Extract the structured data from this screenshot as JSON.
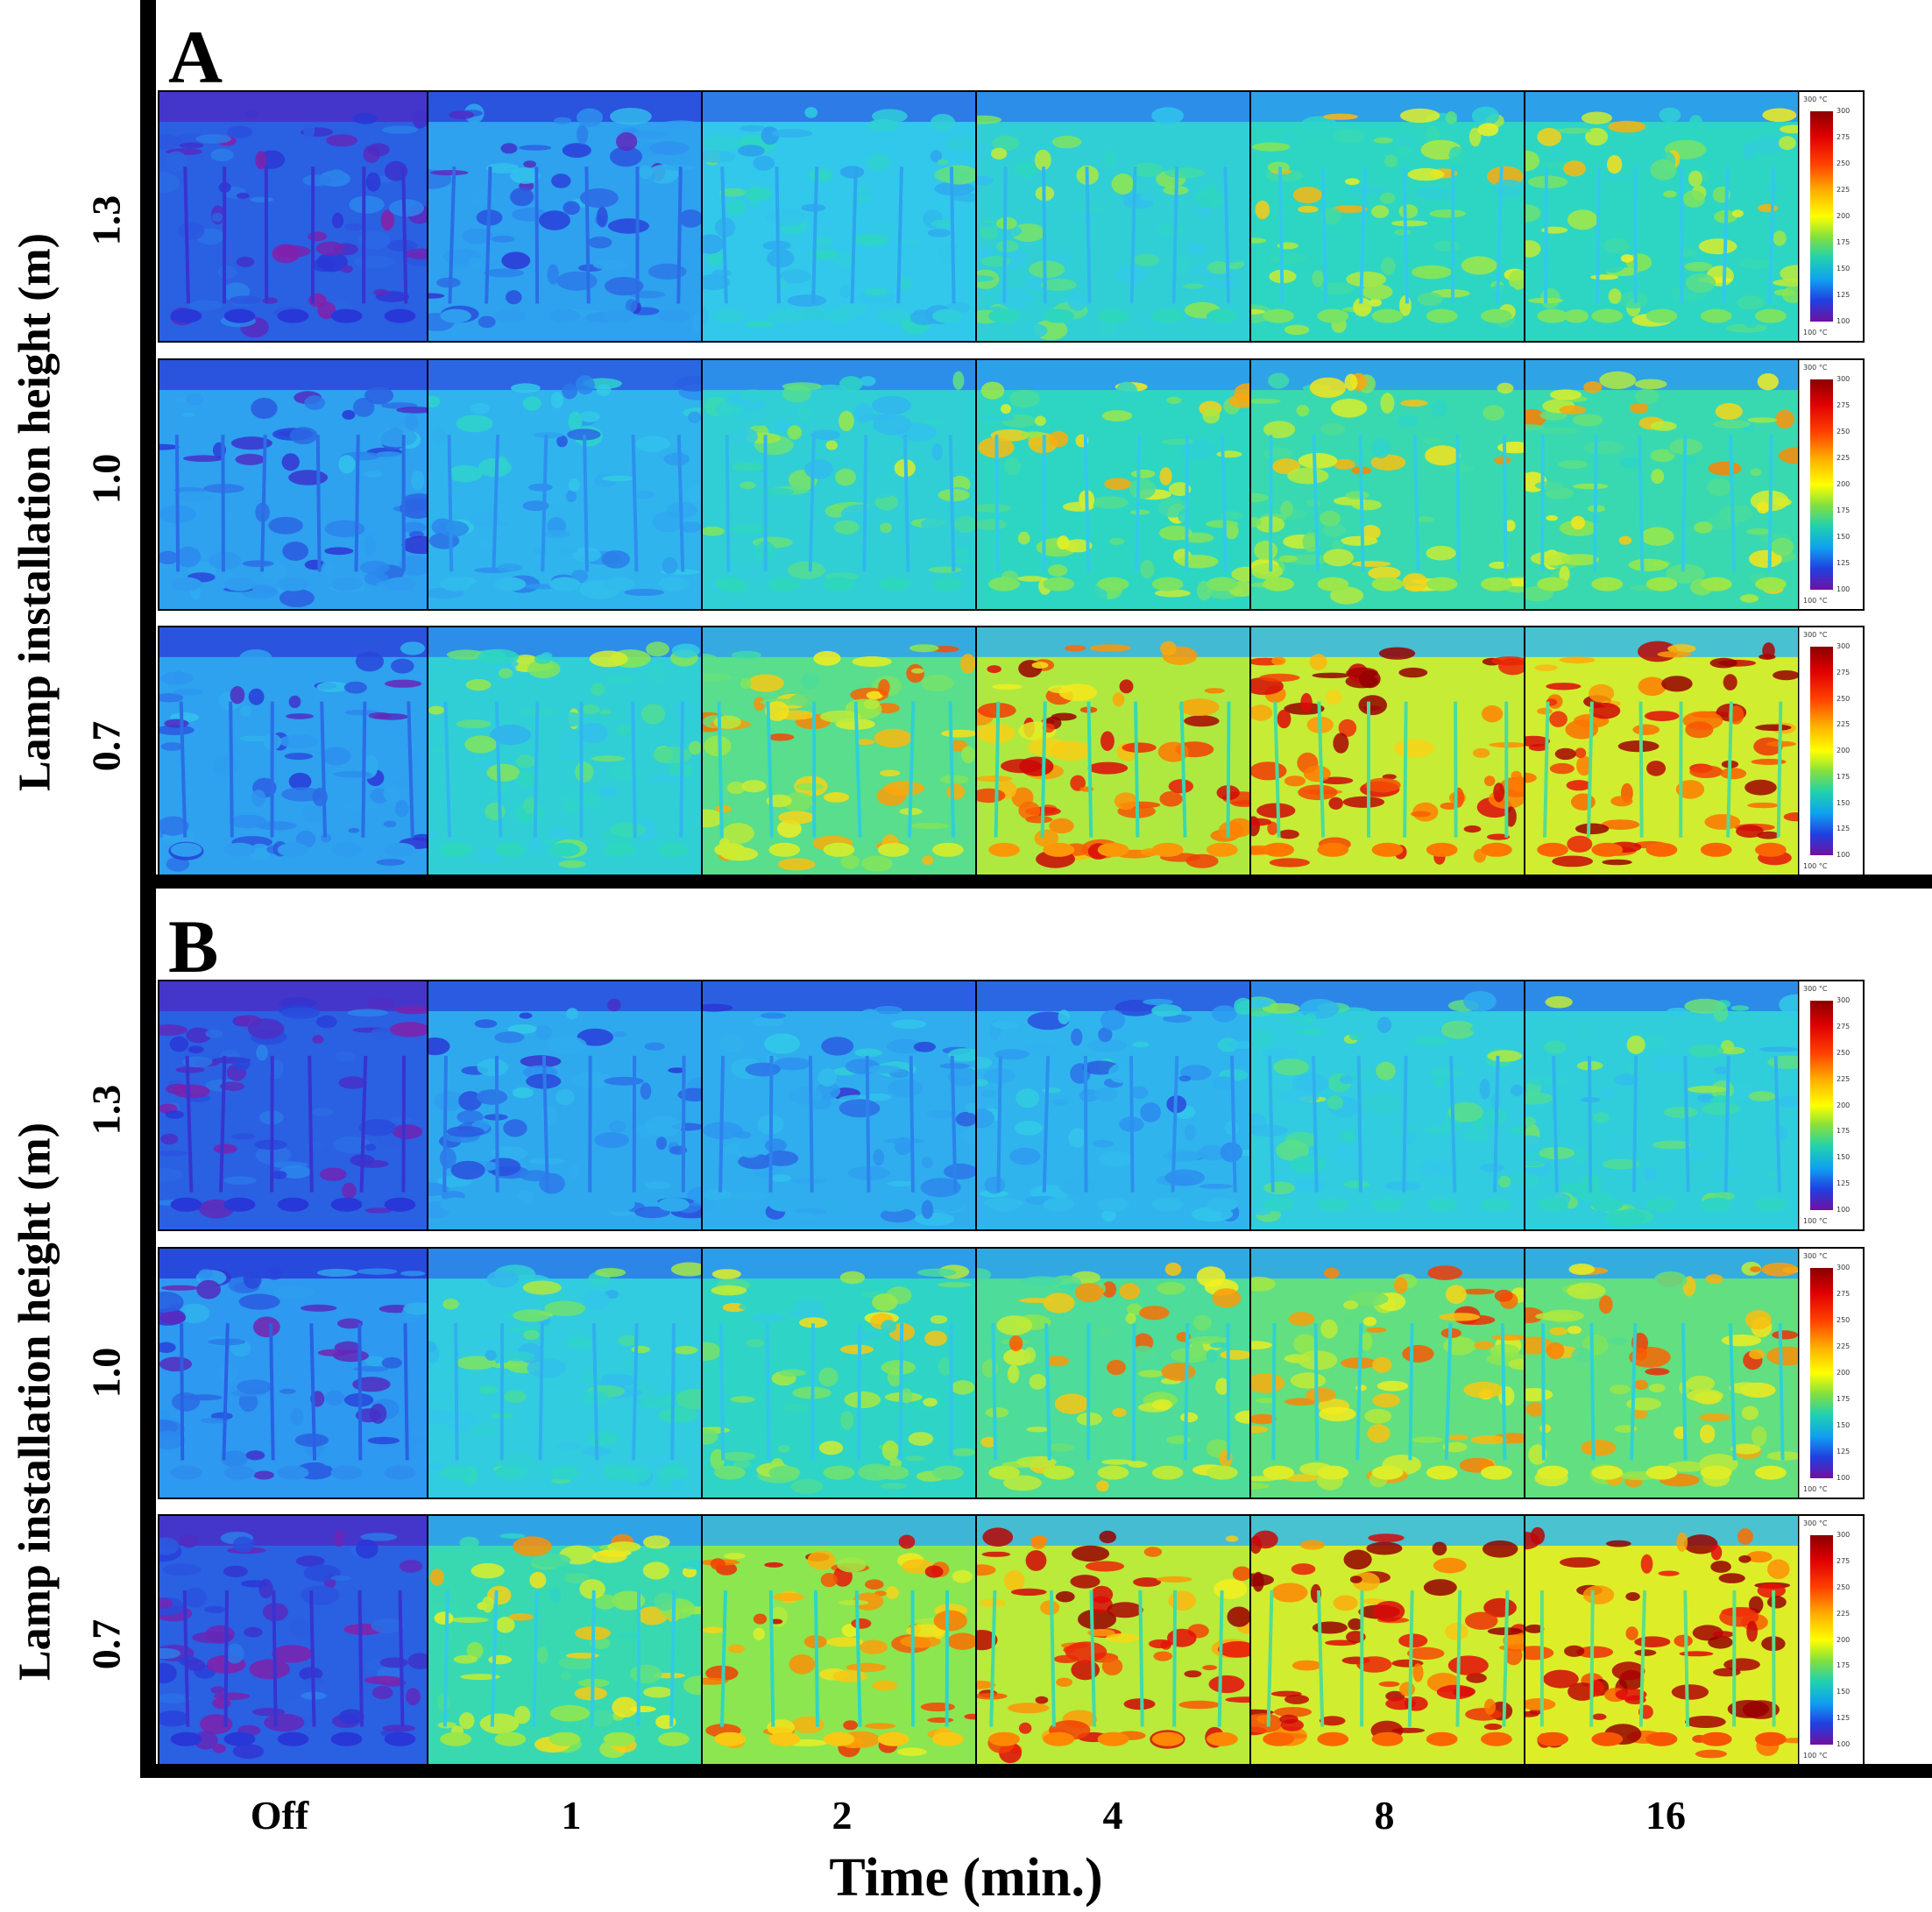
{
  "panels": [
    {
      "letter": "A",
      "rows": [
        "1.3",
        "1.0",
        "0.7"
      ]
    },
    {
      "letter": "B",
      "rows": [
        "1.3",
        "1.0",
        "0.7"
      ]
    }
  ],
  "ylabel": "Lamp installation height (m)",
  "columns": [
    "Off",
    "1",
    "2",
    "4",
    "8",
    "16"
  ],
  "xtitle": "Time (min.)",
  "scale": {
    "unit": "300 °C",
    "ticks": [
      "300",
      "275",
      "250",
      "225",
      "200",
      "175",
      "150",
      "125",
      "100"
    ],
    "bottom": "100 °C"
  },
  "colors": {
    "cold": "#2a3fd8",
    "cool": "#38b6ee",
    "mid": "#2fd7c4",
    "warm": "#f2f216",
    "hot": "#ff2000",
    "purple": "#8a1ea6"
  }
}
